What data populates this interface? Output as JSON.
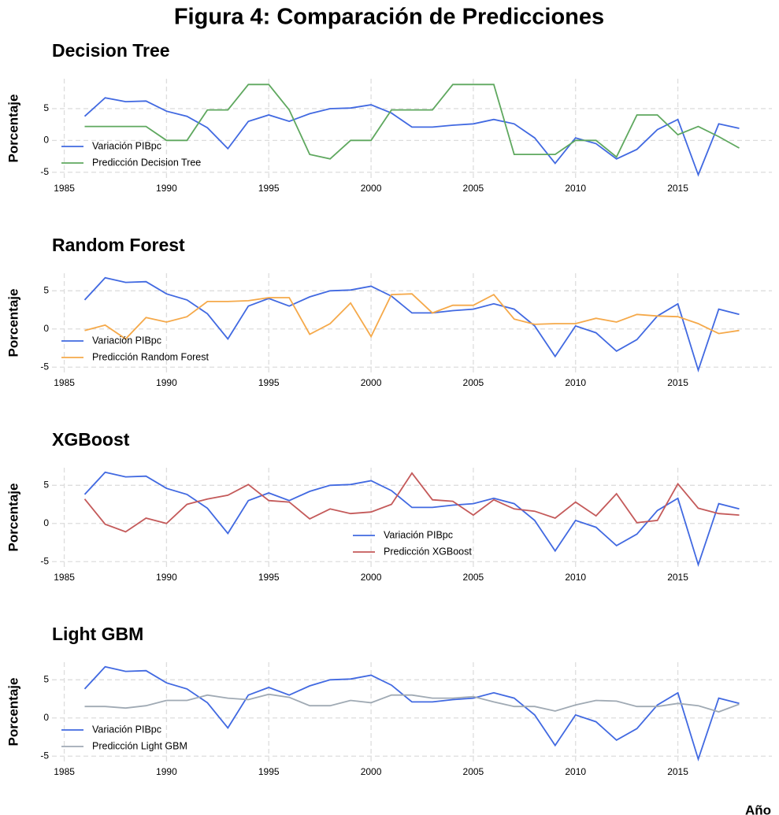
{
  "title": "Figura 4: Comparación de Predicciones",
  "chart_data": [
    {
      "type": "line",
      "title": "Decision Tree",
      "ylabel": "Porcentaje",
      "grid": true,
      "legend": "lower left",
      "x": [
        1986,
        1987,
        1988,
        1989,
        1990,
        1991,
        1992,
        1993,
        1994,
        1995,
        1996,
        1997,
        1998,
        1999,
        2000,
        2001,
        2002,
        2003,
        2004,
        2005,
        2006,
        2007,
        2008,
        2009,
        2010,
        2011,
        2012,
        2013,
        2014,
        2015,
        2016,
        2017,
        2018
      ],
      "xlim": [
        1984.4,
        2019.6
      ],
      "xticks": [
        1985,
        1990,
        1995,
        2000,
        2005,
        2010,
        2015
      ],
      "ylim": [
        -5.9,
        9.7
      ],
      "yticks": [
        -5,
        0,
        5
      ],
      "series": [
        {
          "name": "Variación PIBpc",
          "color": "#4169e1",
          "values": [
            3.8,
            6.7,
            6.1,
            6.2,
            4.6,
            3.8,
            2.0,
            -1.3,
            3.0,
            4.0,
            3.0,
            4.2,
            5.0,
            5.1,
            5.6,
            4.3,
            2.1,
            2.1,
            2.4,
            2.6,
            3.3,
            2.6,
            0.4,
            -3.6,
            0.4,
            -0.5,
            -2.9,
            -1.4,
            1.7,
            3.3,
            -5.4,
            2.6,
            1.9
          ]
        },
        {
          "name": "Predicción Decision Tree",
          "color": "#5fa85f",
          "values": [
            2.2,
            2.2,
            2.2,
            2.2,
            0,
            0,
            4.8,
            4.8,
            8.8,
            8.8,
            4.8,
            -2.2,
            -2.9,
            0,
            0,
            4.8,
            4.8,
            4.8,
            8.8,
            8.8,
            8.8,
            -2.2,
            -2.2,
            -2.2,
            0,
            0,
            -2.6,
            4.0,
            4.0,
            0.9,
            2.2,
            0.6,
            -1.2
          ]
        }
      ]
    },
    {
      "type": "line",
      "title": "Random Forest",
      "ylabel": "Porcentaje",
      "grid": true,
      "legend": "lower left",
      "x": [
        1986,
        1987,
        1988,
        1989,
        1990,
        1991,
        1992,
        1993,
        1994,
        1995,
        1996,
        1997,
        1998,
        1999,
        2000,
        2001,
        2002,
        2003,
        2004,
        2005,
        2006,
        2007,
        2008,
        2009,
        2010,
        2011,
        2012,
        2013,
        2014,
        2015,
        2016,
        2017,
        2018
      ],
      "xlim": [
        1984.4,
        2019.6
      ],
      "xticks": [
        1985,
        1990,
        1995,
        2000,
        2005,
        2010,
        2015
      ],
      "ylim": [
        -5.7,
        7.3
      ],
      "yticks": [
        -5,
        0,
        5
      ],
      "series": [
        {
          "name": "Variación PIBpc",
          "color": "#4169e1",
          "values": [
            3.8,
            6.7,
            6.1,
            6.2,
            4.6,
            3.8,
            2.0,
            -1.3,
            3.0,
            4.0,
            3.0,
            4.2,
            5.0,
            5.1,
            5.6,
            4.3,
            2.1,
            2.1,
            2.4,
            2.6,
            3.3,
            2.6,
            0.4,
            -3.6,
            0.4,
            -0.5,
            -2.9,
            -1.4,
            1.7,
            3.3,
            -5.4,
            2.6,
            1.9
          ]
        },
        {
          "name": "Predicción Random Forest",
          "color": "#f5a94a",
          "values": [
            -0.2,
            0.5,
            -1.3,
            1.5,
            0.9,
            1.6,
            3.6,
            3.6,
            3.7,
            4.1,
            4.1,
            -0.7,
            0.7,
            3.4,
            -1.0,
            4.5,
            4.6,
            2.1,
            3.1,
            3.1,
            4.5,
            1.3,
            0.6,
            0.7,
            0.7,
            1.4,
            0.9,
            1.9,
            1.7,
            1.6,
            0.7,
            -0.6,
            -0.2
          ]
        }
      ]
    },
    {
      "type": "line",
      "title": "XGBoost",
      "ylabel": "Porcentaje",
      "grid": true,
      "legend": "lower center",
      "x": [
        1986,
        1987,
        1988,
        1989,
        1990,
        1991,
        1992,
        1993,
        1994,
        1995,
        1996,
        1997,
        1998,
        1999,
        2000,
        2001,
        2002,
        2003,
        2004,
        2005,
        2006,
        2007,
        2008,
        2009,
        2010,
        2011,
        2012,
        2013,
        2014,
        2015,
        2016,
        2017,
        2018
      ],
      "xlim": [
        1984.4,
        2019.6
      ],
      "xticks": [
        1985,
        1990,
        1995,
        2000,
        2005,
        2010,
        2015
      ],
      "ylim": [
        -5.7,
        7.3
      ],
      "yticks": [
        -5,
        0,
        5
      ],
      "series": [
        {
          "name": "Variación PIBpc",
          "color": "#4169e1",
          "values": [
            3.8,
            6.7,
            6.1,
            6.2,
            4.6,
            3.8,
            2.0,
            -1.3,
            3.0,
            4.0,
            3.0,
            4.2,
            5.0,
            5.1,
            5.6,
            4.3,
            2.1,
            2.1,
            2.4,
            2.6,
            3.3,
            2.6,
            0.4,
            -3.6,
            0.4,
            -0.5,
            -2.9,
            -1.4,
            1.7,
            3.3,
            -5.4,
            2.6,
            1.9
          ]
        },
        {
          "name": "Predicción XGBoost",
          "color": "#c45a5a",
          "values": [
            3.2,
            -0.1,
            -1.1,
            0.7,
            0,
            2.5,
            3.2,
            3.7,
            5.1,
            3.0,
            2.8,
            0.6,
            1.9,
            1.3,
            1.5,
            2.5,
            6.6,
            3.1,
            2.9,
            1.1,
            3.1,
            1.9,
            1.6,
            0.7,
            2.8,
            1.0,
            3.9,
            0.1,
            0.4,
            5.2,
            2.0,
            1.3,
            1.1
          ]
        }
      ]
    },
    {
      "type": "line",
      "title": "Light GBM",
      "ylabel": "Porcentaje",
      "xlabel": "Año",
      "grid": true,
      "legend": "lower left",
      "x": [
        1986,
        1987,
        1988,
        1989,
        1990,
        1991,
        1992,
        1993,
        1994,
        1995,
        1996,
        1997,
        1998,
        1999,
        2000,
        2001,
        2002,
        2003,
        2004,
        2005,
        2006,
        2007,
        2008,
        2009,
        2010,
        2011,
        2012,
        2013,
        2014,
        2015,
        2016,
        2017,
        2018
      ],
      "xlim": [
        1984.4,
        2019.6
      ],
      "xticks": [
        1985,
        1990,
        1995,
        2000,
        2005,
        2010,
        2015
      ],
      "ylim": [
        -5.7,
        7.3
      ],
      "yticks": [
        -5,
        0,
        5
      ],
      "series": [
        {
          "name": "Variación PIBpc",
          "color": "#4169e1",
          "values": [
            3.8,
            6.7,
            6.1,
            6.2,
            4.6,
            3.8,
            2.0,
            -1.3,
            3.0,
            4.0,
            3.0,
            4.2,
            5.0,
            5.1,
            5.6,
            4.3,
            2.1,
            2.1,
            2.4,
            2.6,
            3.3,
            2.6,
            0.4,
            -3.6,
            0.4,
            -0.5,
            -2.9,
            -1.4,
            1.7,
            3.3,
            -5.4,
            2.6,
            1.9
          ]
        },
        {
          "name": "Predicción Light GBM",
          "color": "#a0aab4",
          "values": [
            1.5,
            1.5,
            1.3,
            1.6,
            2.3,
            2.3,
            3.0,
            2.6,
            2.4,
            3.1,
            2.7,
            1.6,
            1.6,
            2.3,
            2.0,
            3.0,
            3.0,
            2.6,
            2.6,
            2.8,
            2.1,
            1.5,
            1.5,
            0.9,
            1.7,
            2.3,
            2.2,
            1.5,
            1.5,
            1.9,
            1.6,
            0.8,
            1.8
          ]
        }
      ]
    }
  ]
}
